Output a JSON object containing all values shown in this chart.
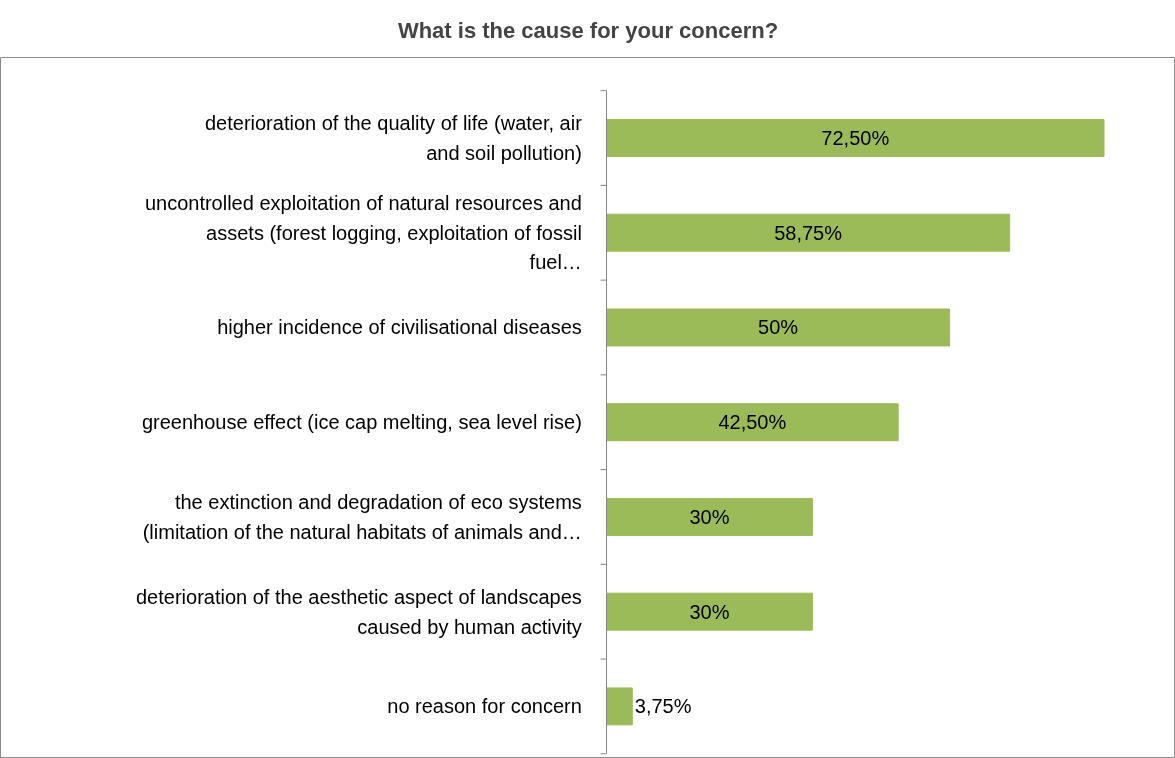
{
  "chart_data": {
    "type": "bar",
    "orientation": "horizontal",
    "title": "What is the cause for your concern?",
    "categories": [
      "deterioration of the quality of life (water, air and soil pollution)",
      "uncontrolled exploitation of natural resources and assets (forest logging, exploitation of fossil fuel…",
      "higher incidence of civilisational diseases",
      "greenhouse effect (ice cap melting, sea level rise)",
      "the extinction and degradation of eco systems (limitation of the natural habitats of animals and…",
      "deterioration of the aesthetic aspect of landscapes caused by human activity",
      "no reason for concern"
    ],
    "values": [
      72.5,
      58.75,
      50,
      42.5,
      30,
      30,
      3.75
    ],
    "value_labels": [
      "72,50%",
      "58,75%",
      "50%",
      "42,50%",
      "30%",
      "30%",
      "3,75%"
    ],
    "color": "#9bbb59"
  }
}
